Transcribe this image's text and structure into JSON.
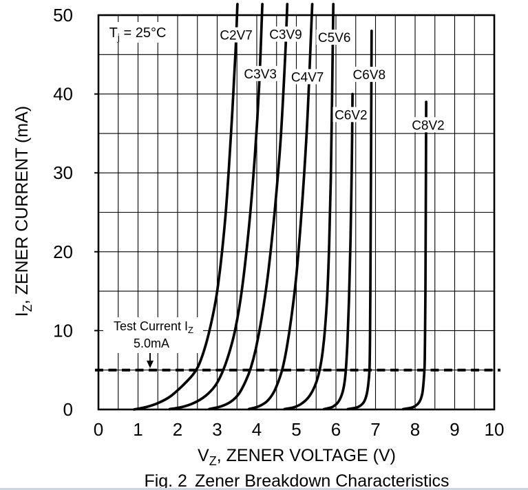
{
  "chart_data": {
    "type": "line",
    "title": "",
    "xlabel_pre": "V",
    "xlabel_sub": "Z",
    "xlabel_post": ", ZENER VOLTAGE (V)",
    "ylabel_pre": "I",
    "ylabel_sub": "Z",
    "ylabel_post": ", ZENER CURRENT (mA)",
    "caption_label": "Fig. 2",
    "caption_text": "Zener Breakdown Characteristics",
    "xlim": [
      0,
      10
    ],
    "ylim": [
      0,
      50
    ],
    "x_ticks": [
      0,
      1,
      2,
      3,
      4,
      5,
      6,
      7,
      8,
      9,
      10
    ],
    "y_ticks": [
      0,
      10,
      20,
      30,
      40,
      50
    ],
    "x_minor_step": 0.5,
    "y_minor_step": 5,
    "grid": "on",
    "legend": "none",
    "annotations": {
      "temperature": {
        "pre": "T",
        "sub": "j",
        "post": " = 25°C"
      },
      "test_current_line1_pre": "Test Current I",
      "test_current_line1_sub": "Z",
      "test_current_line2": "5.0mA",
      "dashed_line_i": 5
    },
    "series": [
      {
        "name": "C2V7",
        "label_pos": [
          3.48,
          47.5
        ],
        "points": [
          [
            0.9,
            0
          ],
          [
            1.2,
            0.3
          ],
          [
            1.5,
            0.8
          ],
          [
            1.8,
            1.6
          ],
          [
            2.1,
            2.9
          ],
          [
            2.4,
            4.5
          ],
          [
            2.58,
            6.2
          ],
          [
            2.78,
            9.5
          ],
          [
            3.0,
            15
          ],
          [
            3.2,
            24
          ],
          [
            3.35,
            35
          ],
          [
            3.46,
            45
          ],
          [
            3.5,
            50
          ]
        ]
      },
      {
        "name": "C3V3",
        "label_pos": [
          4.09,
          42.6
        ],
        "points": [
          [
            1.8,
            0.05
          ],
          [
            2.1,
            0.3
          ],
          [
            2.4,
            0.8
          ],
          [
            2.7,
            1.7
          ],
          [
            2.95,
            3.0
          ],
          [
            3.12,
            4.6
          ],
          [
            3.28,
            6.8
          ],
          [
            3.45,
            10
          ],
          [
            3.62,
            15
          ],
          [
            3.8,
            23
          ],
          [
            3.95,
            32
          ],
          [
            4.06,
            41
          ],
          [
            4.13,
            50
          ]
        ]
      },
      {
        "name": "C3V9",
        "label_pos": [
          4.73,
          47.6
        ],
        "points": [
          [
            2.8,
            0.05
          ],
          [
            3.1,
            0.4
          ],
          [
            3.35,
            1.0
          ],
          [
            3.55,
            2.0
          ],
          [
            3.72,
            3.6
          ],
          [
            3.85,
            5.3
          ],
          [
            3.98,
            7.8
          ],
          [
            4.12,
            11.5
          ],
          [
            4.28,
            17
          ],
          [
            4.45,
            25
          ],
          [
            4.6,
            34
          ],
          [
            4.72,
            45
          ],
          [
            4.76,
            50
          ]
        ]
      },
      {
        "name": "C4V7",
        "label_pos": [
          5.28,
          42.2
        ],
        "points": [
          [
            3.8,
            0.05
          ],
          [
            4.05,
            0.4
          ],
          [
            4.25,
            1.0
          ],
          [
            4.42,
            2.1
          ],
          [
            4.55,
            3.6
          ],
          [
            4.65,
            5.2
          ],
          [
            4.75,
            7.6
          ],
          [
            4.87,
            11.5
          ],
          [
            5.0,
            17
          ],
          [
            5.13,
            25
          ],
          [
            5.26,
            35
          ],
          [
            5.35,
            45
          ],
          [
            5.39,
            50
          ]
        ]
      },
      {
        "name": "C5V6",
        "label_pos": [
          5.96,
          47.2
        ],
        "points": [
          [
            4.7,
            0.05
          ],
          [
            4.95,
            0.3
          ],
          [
            5.15,
            0.8
          ],
          [
            5.33,
            1.7
          ],
          [
            5.47,
            3.0
          ],
          [
            5.57,
            4.6
          ],
          [
            5.65,
            6.8
          ],
          [
            5.72,
            10
          ],
          [
            5.78,
            14.5
          ],
          [
            5.83,
            21
          ],
          [
            5.87,
            29
          ],
          [
            5.9,
            39
          ],
          [
            5.93,
            50
          ]
        ]
      },
      {
        "name": "C6V2",
        "label_pos": [
          6.38,
          37.4
        ],
        "points": [
          [
            5.7,
            0.05
          ],
          [
            5.9,
            0.3
          ],
          [
            6.05,
            0.9
          ],
          [
            6.15,
            1.9
          ],
          [
            6.21,
            3.2
          ],
          [
            6.25,
            5.0
          ],
          [
            6.29,
            8.5
          ],
          [
            6.33,
            14
          ],
          [
            6.37,
            22
          ],
          [
            6.4,
            31
          ],
          [
            6.42,
            40
          ]
        ]
      },
      {
        "name": "C6V8",
        "label_pos": [
          6.84,
          42.5
        ],
        "points": [
          [
            6.3,
            0.05
          ],
          [
            6.55,
            0.3
          ],
          [
            6.7,
            0.9
          ],
          [
            6.78,
            2.0
          ],
          [
            6.83,
            3.8
          ],
          [
            6.85,
            5.5
          ],
          [
            6.86,
            9
          ],
          [
            6.87,
            15
          ],
          [
            6.88,
            25
          ],
          [
            6.89,
            36
          ],
          [
            6.9,
            48
          ]
        ]
      },
      {
        "name": "C8V2",
        "label_pos": [
          8.33,
          36.1
        ],
        "points": [
          [
            7.7,
            0.05
          ],
          [
            7.95,
            0.3
          ],
          [
            8.1,
            0.9
          ],
          [
            8.18,
            2.0
          ],
          [
            8.22,
            3.8
          ],
          [
            8.24,
            5.5
          ],
          [
            8.25,
            9
          ],
          [
            8.26,
            15
          ],
          [
            8.27,
            25
          ],
          [
            8.28,
            39
          ]
        ]
      }
    ]
  },
  "colors": {
    "line": "#000000",
    "text": "#000000",
    "background": "#ffffff",
    "bottom_strip": "#ccd5e6"
  }
}
